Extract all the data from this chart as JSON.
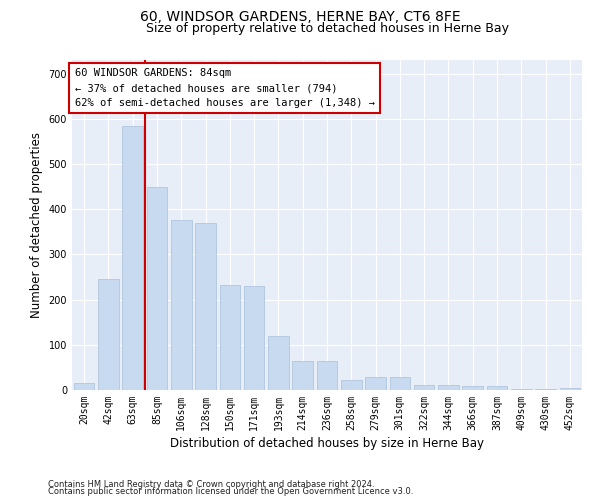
{
  "title": "60, WINDSOR GARDENS, HERNE BAY, CT6 8FE",
  "subtitle": "Size of property relative to detached houses in Herne Bay",
  "xlabel": "Distribution of detached houses by size in Herne Bay",
  "ylabel": "Number of detached properties",
  "categories": [
    "20sqm",
    "42sqm",
    "63sqm",
    "85sqm",
    "106sqm",
    "128sqm",
    "150sqm",
    "171sqm",
    "193sqm",
    "214sqm",
    "236sqm",
    "258sqm",
    "279sqm",
    "301sqm",
    "322sqm",
    "344sqm",
    "366sqm",
    "387sqm",
    "409sqm",
    "430sqm",
    "452sqm"
  ],
  "values": [
    15,
    245,
    585,
    450,
    375,
    370,
    233,
    230,
    120,
    65,
    65,
    22,
    28,
    28,
    10,
    10,
    8,
    8,
    3,
    3,
    4
  ],
  "bar_color": "#c8daf0",
  "bar_edge_color": "#a8c0dc",
  "vline_color": "#cc0000",
  "vline_x_index": 2.5,
  "annotation_text": "60 WINDSOR GARDENS: 84sqm\n← 37% of detached houses are smaller (794)\n62% of semi-detached houses are larger (1,348) →",
  "annotation_box_facecolor": "#ffffff",
  "annotation_box_edgecolor": "#cc0000",
  "ylim": [
    0,
    730
  ],
  "yticks": [
    0,
    100,
    200,
    300,
    400,
    500,
    600,
    700
  ],
  "plot_bg_color": "#e8eef8",
  "grid_color": "#ffffff",
  "footer_line1": "Contains HM Land Registry data © Crown copyright and database right 2024.",
  "footer_line2": "Contains public sector information licensed under the Open Government Licence v3.0.",
  "title_fontsize": 10,
  "subtitle_fontsize": 9,
  "xlabel_fontsize": 8.5,
  "ylabel_fontsize": 8.5,
  "tick_fontsize": 7,
  "annotation_fontsize": 7.5,
  "footer_fontsize": 6
}
